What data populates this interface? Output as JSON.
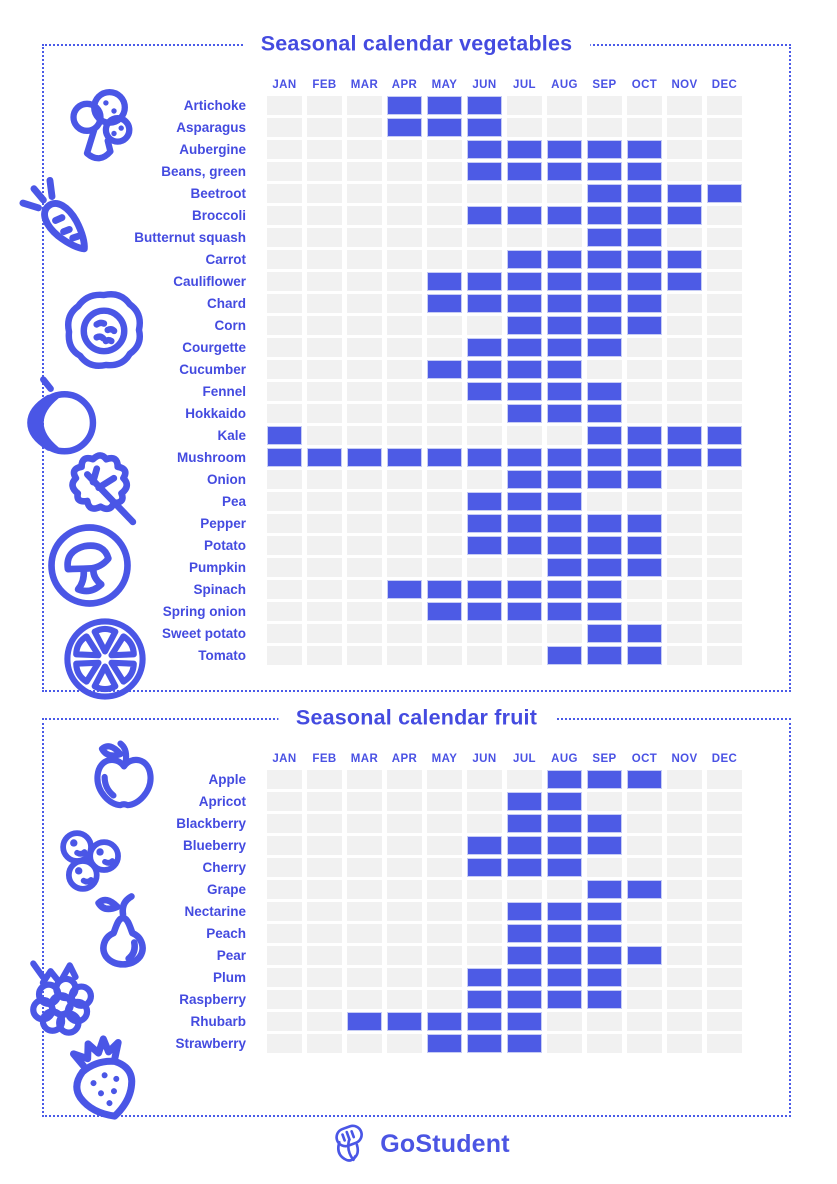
{
  "colors": {
    "accent_text": "#444BE0",
    "cell_filled": "#4D5BE5",
    "cell_empty": "#F1F1F1",
    "dotted_border": "#4A5AE8",
    "cell_halo": "#C6CCF4"
  },
  "chart_data": [
    {
      "id": "vegetables",
      "type": "heatmap",
      "title": "Seasonal calendar vegetables",
      "x_categories": [
        "JAN",
        "FEB",
        "MAR",
        "APR",
        "MAY",
        "JUN",
        "JUL",
        "AUG",
        "SEP",
        "OCT",
        "NOV",
        "DEC"
      ],
      "icons": [
        "broccoli-icon",
        "carrot-icon",
        "cabbage-icon",
        "pumpkin-icon",
        "leaf-icon",
        "mushroom-icon",
        "citrus-slice-icon"
      ],
      "rows": [
        {
          "label": "Artichoke",
          "in_season": [
            "APR",
            "MAY",
            "JUN"
          ]
        },
        {
          "label": "Asparagus",
          "in_season": [
            "APR",
            "MAY",
            "JUN"
          ]
        },
        {
          "label": "Aubergine",
          "in_season": [
            "JUN",
            "JUL",
            "AUG",
            "SEP",
            "OCT"
          ]
        },
        {
          "label": "Beans, green",
          "in_season": [
            "JUN",
            "JUL",
            "AUG",
            "SEP",
            "OCT"
          ]
        },
        {
          "label": "Beetroot",
          "in_season": [
            "SEP",
            "OCT",
            "NOV",
            "DEC"
          ]
        },
        {
          "label": "Broccoli",
          "in_season": [
            "JUN",
            "JUL",
            "AUG",
            "SEP",
            "OCT",
            "NOV"
          ]
        },
        {
          "label": "Butternut squash",
          "in_season": [
            "SEP",
            "OCT"
          ]
        },
        {
          "label": "Carrot",
          "in_season": [
            "JUL",
            "AUG",
            "SEP",
            "OCT",
            "NOV"
          ]
        },
        {
          "label": "Cauliflower",
          "in_season": [
            "MAY",
            "JUN",
            "JUL",
            "AUG",
            "SEP",
            "OCT",
            "NOV"
          ]
        },
        {
          "label": "Chard",
          "in_season": [
            "MAY",
            "JUN",
            "JUL",
            "AUG",
            "SEP",
            "OCT"
          ]
        },
        {
          "label": "Corn",
          "in_season": [
            "JUL",
            "AUG",
            "SEP",
            "OCT"
          ]
        },
        {
          "label": "Courgette",
          "in_season": [
            "JUN",
            "JUL",
            "AUG",
            "SEP"
          ]
        },
        {
          "label": "Cucumber",
          "in_season": [
            "MAY",
            "JUN",
            "JUL",
            "AUG"
          ]
        },
        {
          "label": "Fennel",
          "in_season": [
            "JUN",
            "JUL",
            "AUG",
            "SEP"
          ]
        },
        {
          "label": "Hokkaido",
          "in_season": [
            "JUL",
            "AUG",
            "SEP"
          ]
        },
        {
          "label": "Kale",
          "in_season": [
            "JAN",
            "SEP",
            "OCT",
            "NOV",
            "DEC"
          ]
        },
        {
          "label": "Mushroom",
          "in_season": [
            "JAN",
            "FEB",
            "MAR",
            "APR",
            "MAY",
            "JUN",
            "JUL",
            "AUG",
            "SEP",
            "OCT",
            "NOV",
            "DEC"
          ]
        },
        {
          "label": "Onion",
          "in_season": [
            "JUL",
            "AUG",
            "SEP",
            "OCT"
          ]
        },
        {
          "label": "Pea",
          "in_season": [
            "JUN",
            "JUL",
            "AUG"
          ]
        },
        {
          "label": "Pepper",
          "in_season": [
            "JUN",
            "JUL",
            "AUG",
            "SEP",
            "OCT"
          ]
        },
        {
          "label": "Potato",
          "in_season": [
            "JUN",
            "JUL",
            "AUG",
            "SEP",
            "OCT"
          ]
        },
        {
          "label": "Pumpkin",
          "in_season": [
            "AUG",
            "SEP",
            "OCT"
          ]
        },
        {
          "label": "Spinach",
          "in_season": [
            "APR",
            "MAY",
            "JUN",
            "JUL",
            "AUG",
            "SEP"
          ]
        },
        {
          "label": "Spring onion",
          "in_season": [
            "MAY",
            "JUN",
            "JUL",
            "AUG",
            "SEP"
          ]
        },
        {
          "label": "Sweet potato",
          "in_season": [
            "SEP",
            "OCT"
          ]
        },
        {
          "label": "Tomato",
          "in_season": [
            "AUG",
            "SEP",
            "OCT"
          ]
        }
      ]
    },
    {
      "id": "fruit",
      "type": "heatmap",
      "title": "Seasonal calendar fruit",
      "x_categories": [
        "JAN",
        "FEB",
        "MAR",
        "APR",
        "MAY",
        "JUN",
        "JUL",
        "AUG",
        "SEP",
        "OCT",
        "NOV",
        "DEC"
      ],
      "icons": [
        "apple-icon",
        "blueberries-icon",
        "pear-icon",
        "raspberry-icon",
        "strawberry-icon"
      ],
      "rows": [
        {
          "label": "Apple",
          "in_season": [
            "AUG",
            "SEP",
            "OCT"
          ]
        },
        {
          "label": "Apricot",
          "in_season": [
            "JUL",
            "AUG"
          ]
        },
        {
          "label": "Blackberry",
          "in_season": [
            "JUL",
            "AUG",
            "SEP"
          ]
        },
        {
          "label": "Blueberry",
          "in_season": [
            "JUN",
            "JUL",
            "AUG",
            "SEP"
          ]
        },
        {
          "label": "Cherry",
          "in_season": [
            "JUN",
            "JUL",
            "AUG"
          ]
        },
        {
          "label": "Grape",
          "in_season": [
            "SEP",
            "OCT"
          ]
        },
        {
          "label": "Nectarine",
          "in_season": [
            "JUL",
            "AUG",
            "SEP"
          ]
        },
        {
          "label": "Peach",
          "in_season": [
            "JUL",
            "AUG",
            "SEP"
          ]
        },
        {
          "label": "Pear",
          "in_season": [
            "JUL",
            "AUG",
            "SEP",
            "OCT"
          ]
        },
        {
          "label": "Plum",
          "in_season": [
            "JUN",
            "JUL",
            "AUG",
            "SEP"
          ]
        },
        {
          "label": "Raspberry",
          "in_season": [
            "JUN",
            "JUL",
            "AUG",
            "SEP"
          ]
        },
        {
          "label": "Rhubarb",
          "in_season": [
            "MAR",
            "APR",
            "MAY",
            "JUN",
            "JUL"
          ]
        },
        {
          "label": "Strawberry",
          "in_season": [
            "MAY",
            "JUN",
            "JUL"
          ]
        }
      ]
    }
  ],
  "footer": {
    "brand": "GoStudent"
  }
}
